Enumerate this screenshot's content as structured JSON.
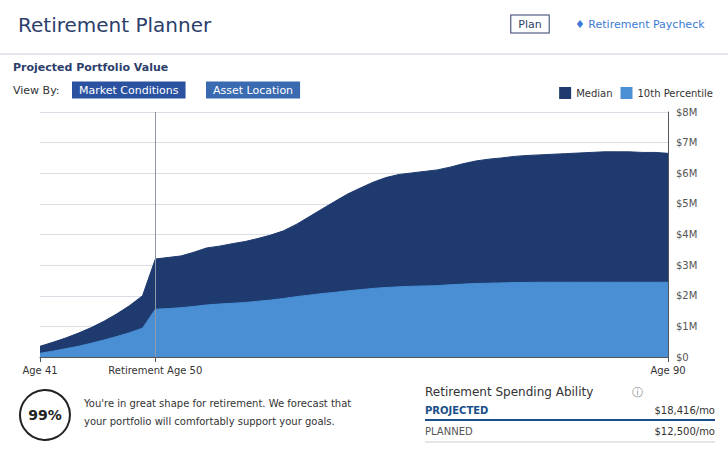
{
  "chart_data": {
    "type": "area",
    "title": "Retirement Planner",
    "subtitle": "Projected Portfolio Value",
    "x": [
      41,
      42,
      43,
      44,
      45,
      46,
      47,
      48,
      49,
      50,
      51,
      52,
      53,
      54,
      55,
      56,
      57,
      58,
      59,
      60,
      61,
      62,
      63,
      64,
      65,
      66,
      67,
      68,
      69,
      70,
      71,
      72,
      73,
      74,
      75,
      76,
      77,
      78,
      79,
      80,
      81,
      82,
      83,
      84,
      85,
      86,
      87,
      88,
      89,
      90
    ],
    "series": [
      {
        "name": "Median",
        "color": "#1e3a6e",
        "values": [
          350000,
          480000,
          620000,
          780000,
          960000,
          1170000,
          1410000,
          1680000,
          2000000,
          3200000,
          3250000,
          3300000,
          3420000,
          3560000,
          3620000,
          3700000,
          3770000,
          3870000,
          3980000,
          4120000,
          4330000,
          4580000,
          4830000,
          5080000,
          5320000,
          5520000,
          5710000,
          5860000,
          5960000,
          6010000,
          6060000,
          6110000,
          6200000,
          6310000,
          6400000,
          6460000,
          6500000,
          6550000,
          6580000,
          6600000,
          6620000,
          6640000,
          6660000,
          6680000,
          6700000,
          6700000,
          6700000,
          6680000,
          6680000,
          6650000
        ]
      },
      {
        "name": "10th Percentile",
        "color": "#4a8fd4",
        "values": [
          120000,
          190000,
          270000,
          350000,
          450000,
          555000,
          670000,
          795000,
          940000,
          1560000,
          1580000,
          1610000,
          1650000,
          1700000,
          1730000,
          1755000,
          1780000,
          1820000,
          1860000,
          1910000,
          1970000,
          2020000,
          2070000,
          2110000,
          2160000,
          2200000,
          2240000,
          2270000,
          2290000,
          2310000,
          2320000,
          2330000,
          2360000,
          2380000,
          2400000,
          2410000,
          2420000,
          2430000,
          2435000,
          2440000,
          2440000,
          2440000,
          2440000,
          2440000,
          2440000,
          2440000,
          2440000,
          2440000,
          2440000,
          2440000
        ]
      }
    ],
    "xlim": [
      41,
      90
    ],
    "xticks": [
      {
        "value": 41,
        "label": "Age 41"
      },
      {
        "value": 50,
        "label": "Retirement Age 50"
      },
      {
        "value": 90,
        "label": "Age 90"
      }
    ],
    "vlines": [
      50
    ],
    "ylim": [
      0,
      8000000
    ],
    "yticks": [
      {
        "value": 0,
        "label": "$0"
      },
      {
        "value": 1000000,
        "label": "$1M"
      },
      {
        "value": 2000000,
        "label": "$2M"
      },
      {
        "value": 3000000,
        "label": "$3M"
      },
      {
        "value": 4000000,
        "label": "$4M"
      },
      {
        "value": 5000000,
        "label": "$5M"
      },
      {
        "value": 6000000,
        "label": "$6M"
      },
      {
        "value": 7000000,
        "label": "$7M"
      },
      {
        "value": 8000000,
        "label": "$8M"
      }
    ],
    "grid": true,
    "legend": "upper right",
    "annotations": [
      "Plan",
      "♦ Retirement Paycheck",
      "View By:",
      "Market Conditions",
      "Asset Location",
      "99%",
      "You're in great shape for retirement. We forecast that",
      "your portfolio will comfortably support your goals.",
      "Retirement Spending Ability",
      "ⓘ",
      "PROJECTED",
      "$18,416/mo",
      "PLANNED",
      "$12,500/mo"
    ]
  }
}
